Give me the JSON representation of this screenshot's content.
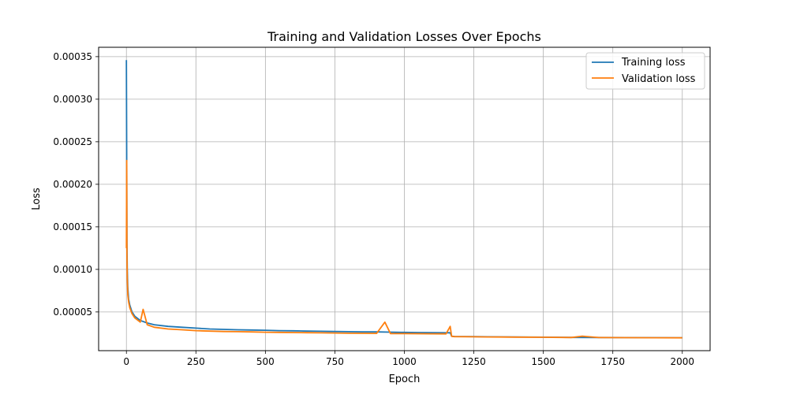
{
  "chart_data": {
    "type": "line",
    "title": "Training and Validation Losses Over Epochs",
    "xlabel": "Epoch",
    "ylabel": "Loss",
    "xlim": [
      -100,
      2100
    ],
    "ylim": [
      4.5e-06,
      0.000361
    ],
    "xticks": [
      0,
      250,
      500,
      750,
      1000,
      1250,
      1500,
      1750,
      2000
    ],
    "yticks": [
      5e-05,
      0.0001,
      0.00015,
      0.0002,
      0.00025,
      0.0003,
      0.00035
    ],
    "xtick_labels": [
      "0",
      "250",
      "500",
      "750",
      "1000",
      "1250",
      "1500",
      "1750",
      "2000"
    ],
    "ytick_labels": [
      "0.00005",
      "0.00010",
      "0.00015",
      "0.00020",
      "0.00025",
      "0.00030",
      "0.00035"
    ],
    "grid": true,
    "legend_position": "top-right",
    "series": [
      {
        "name": "Training loss",
        "color": "#1f77b4",
        "x": [
          0,
          1,
          2,
          3,
          5,
          8,
          12,
          20,
          30,
          50,
          75,
          100,
          150,
          200,
          250,
          300,
          350,
          400,
          450,
          500,
          550,
          600,
          650,
          700,
          750,
          800,
          850,
          900,
          950,
          1000,
          1050,
          1100,
          1150,
          1165,
          1170,
          1180,
          1250,
          1300,
          1400,
          1500,
          1600,
          1700,
          1800,
          1900,
          2000
        ],
        "y": [
          0.000346,
          0.000225,
          0.00013,
          0.0001,
          7.8e-05,
          6.5e-05,
          5.8e-05,
          5e-05,
          4.5e-05,
          4e-05,
          3.7e-05,
          3.5e-05,
          3.3e-05,
          3.2e-05,
          3.1e-05,
          3e-05,
          2.95e-05,
          2.9e-05,
          2.88e-05,
          2.85e-05,
          2.8e-05,
          2.78e-05,
          2.75e-05,
          2.73e-05,
          2.7e-05,
          2.68e-05,
          2.66e-05,
          2.65e-05,
          2.63e-05,
          2.6e-05,
          2.58e-05,
          2.56e-05,
          2.55e-05,
          2.55e-05,
          2.15e-05,
          2.12e-05,
          2.1e-05,
          2.08e-05,
          2.05e-05,
          2.03e-05,
          2.01e-05,
          2e-05,
          1.99e-05,
          1.98e-05,
          1.97e-05
        ]
      },
      {
        "name": "Validation loss",
        "color": "#ff7f0e",
        "x": [
          0,
          1,
          2,
          3,
          5,
          8,
          12,
          20,
          30,
          50,
          60,
          75,
          100,
          150,
          200,
          250,
          300,
          350,
          400,
          450,
          500,
          550,
          600,
          650,
          700,
          750,
          800,
          850,
          900,
          930,
          950,
          1000,
          1050,
          1100,
          1150,
          1165,
          1170,
          1180,
          1250,
          1300,
          1400,
          1500,
          1600,
          1640,
          1700,
          1800,
          1900,
          2000
        ],
        "y": [
          0.000125,
          0.000228,
          0.000115,
          9e-05,
          7e-05,
          6.2e-05,
          5.5e-05,
          4.8e-05,
          4.3e-05,
          3.8e-05,
          5.3e-05,
          3.5e-05,
          3.2e-05,
          3e-05,
          2.9e-05,
          2.8e-05,
          2.75e-05,
          2.7e-05,
          2.68e-05,
          2.65e-05,
          2.62e-05,
          2.6e-05,
          2.58e-05,
          2.56e-05,
          2.54e-05,
          2.52e-05,
          2.5e-05,
          2.49e-05,
          2.48e-05,
          3.8e-05,
          2.46e-05,
          2.45e-05,
          2.44e-05,
          2.43e-05,
          2.42e-05,
          3.3e-05,
          2.13e-05,
          2.1e-05,
          2.08e-05,
          2.06e-05,
          2.04e-05,
          2.02e-05,
          2e-05,
          2.15e-05,
          1.99e-05,
          1.98e-05,
          1.97e-05,
          1.96e-05
        ]
      }
    ]
  }
}
